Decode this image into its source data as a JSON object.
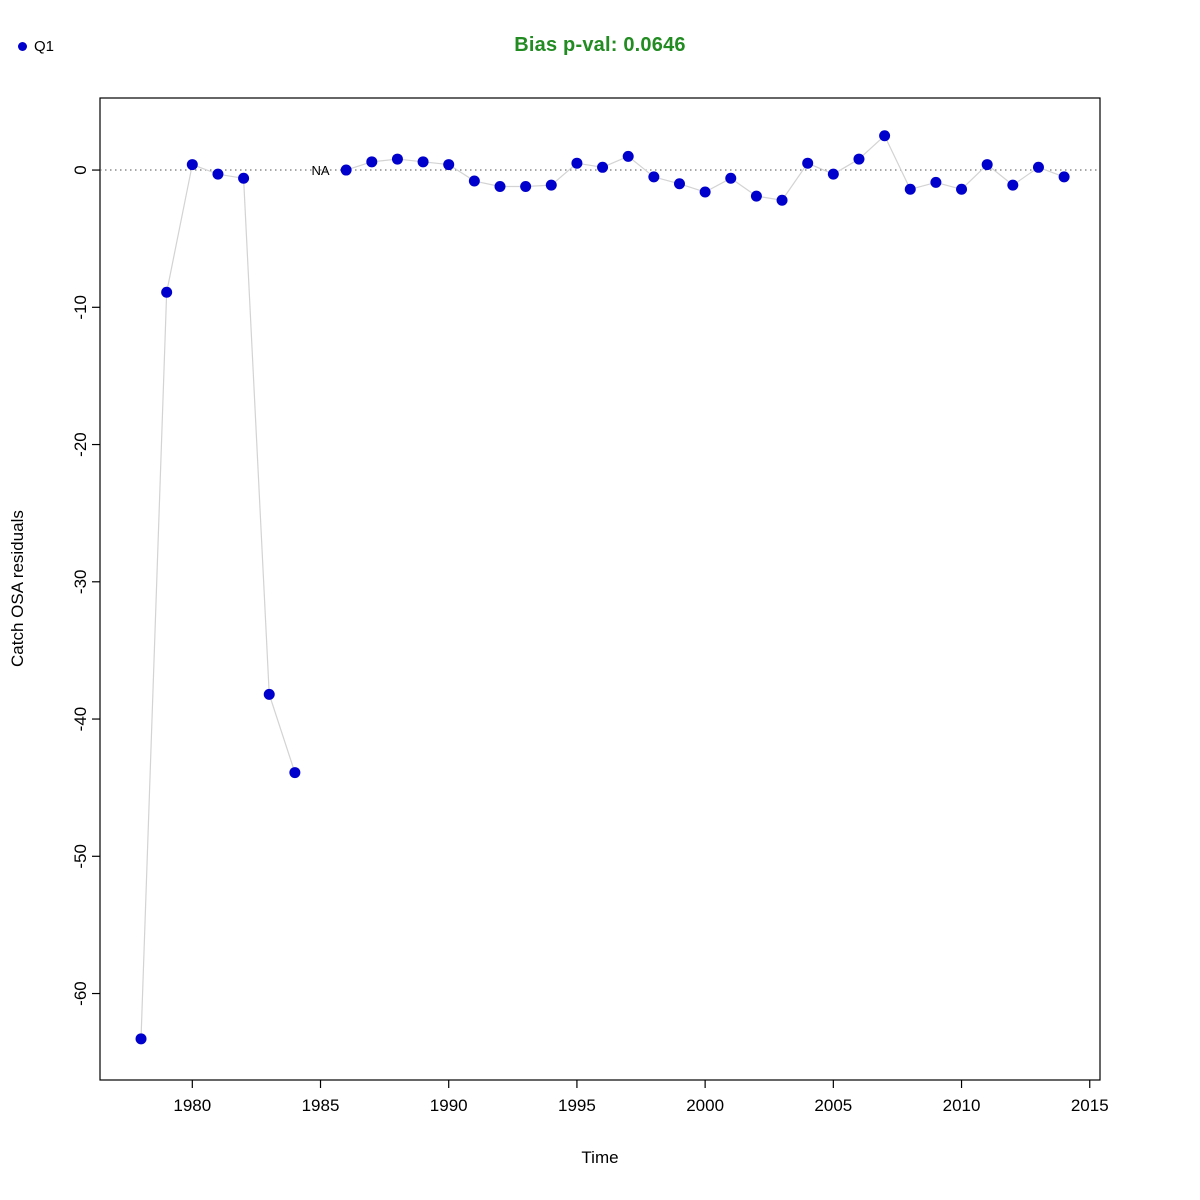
{
  "title_color": "#228B22",
  "chart_data": {
    "type": "scatter",
    "title": "Bias p-val: 0.0646",
    "xlabel": "Time",
    "ylabel": "Catch OSA residuals",
    "legend": {
      "label": "Q1",
      "position": "top-left"
    },
    "x": [
      1978,
      1979,
      1980,
      1981,
      1982,
      1983,
      1984,
      1985,
      1986,
      1987,
      1988,
      1989,
      1990,
      1991,
      1992,
      1993,
      1994,
      1995,
      1996,
      1997,
      1998,
      1999,
      2000,
      2001,
      2002,
      2003,
      2004,
      2005,
      2006,
      2007,
      2008,
      2009,
      2010,
      2011,
      2012,
      2013,
      2014
    ],
    "y": [
      -63.3,
      -8.9,
      0.4,
      -0.3,
      -0.6,
      -38.2,
      -43.9,
      null,
      0.0,
      0.6,
      0.8,
      0.6,
      0.4,
      -0.8,
      -1.2,
      -1.2,
      -1.1,
      0.5,
      0.2,
      1.0,
      -0.5,
      -1.0,
      -1.6,
      -0.6,
      -1.9,
      -2.2,
      0.5,
      -0.3,
      0.8,
      2.5,
      -1.4,
      -0.9,
      -1.4,
      0.4,
      -1.1,
      0.2,
      -0.5
    ],
    "na_label": "NA",
    "na_x": 1985,
    "na_y": 0,
    "xticks": [
      1980,
      1985,
      1990,
      1995,
      2000,
      2005,
      2010,
      2015
    ],
    "yticks": [
      0,
      -10,
      -20,
      -30,
      -40,
      -50,
      -60
    ],
    "xlim": [
      1976.4,
      2015.4
    ],
    "ylim": [
      -66.3,
      5.25
    ],
    "zero_line": true,
    "grid": false,
    "point_color": "#0000CC",
    "line_color": "#d3d3d3",
    "zero_line_color": "#505050"
  }
}
